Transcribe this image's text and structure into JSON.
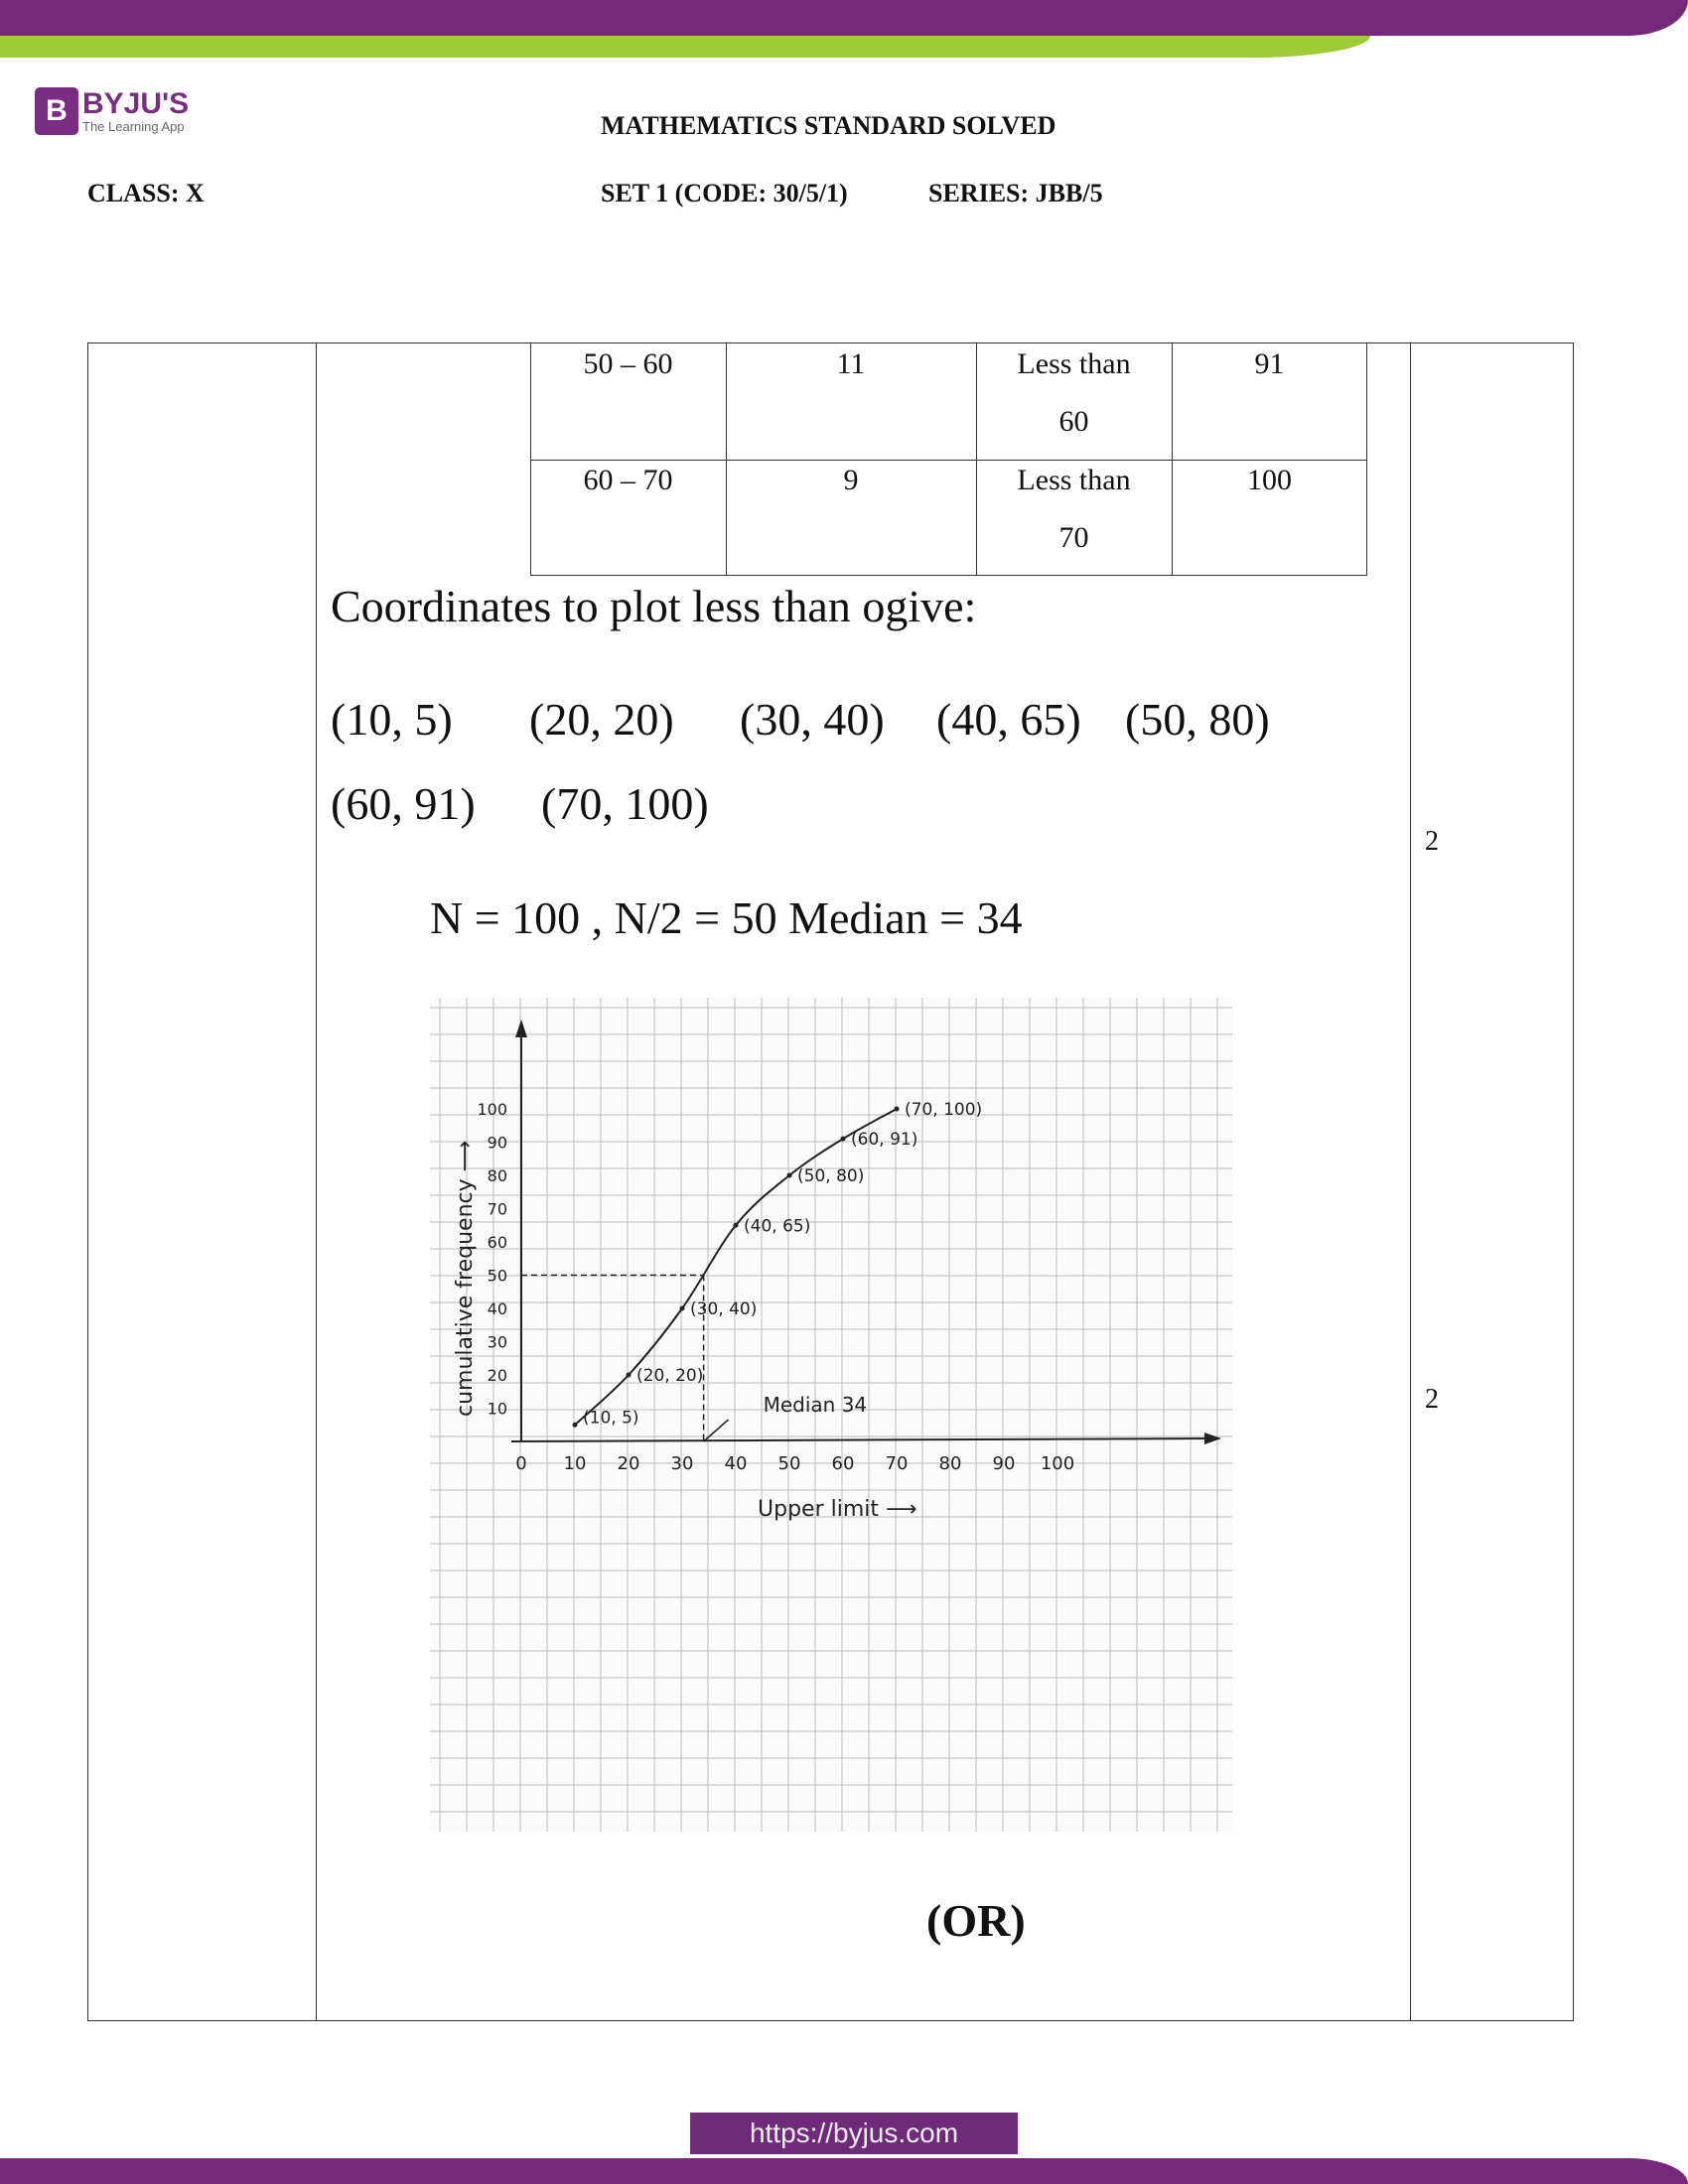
{
  "header": {
    "logo_brand": "BYJU'S",
    "logo_tagline": "The Learning App",
    "logo_letter": "B",
    "title": "MATHEMATICS STANDARD SOLVED",
    "class_label": "CLASS: X",
    "set_label": "SET 1 (CODE: 30/5/1)",
    "series_label": "SERIES: JBB/5"
  },
  "table": {
    "rows": [
      {
        "class_interval": "50 – 60",
        "frequency": "11",
        "less_than_1": "Less than",
        "less_than_2": "60",
        "cf": "91"
      },
      {
        "class_interval": "60 – 70",
        "frequency": "9",
        "less_than_1": "Less than",
        "less_than_2": "70",
        "cf": "100"
      }
    ]
  },
  "content": {
    "coords_heading": "Coordinates  to plot less than ogive:",
    "coords_row1": [
      "(10, 5)",
      "(20, 20)",
      "(30, 40)",
      "(40, 65)",
      "(50, 80)"
    ],
    "coords_row2": [
      "(60, 91)",
      "(70, 100)"
    ],
    "median_line": "N = 100 , N/2 = 50  Median = 34",
    "marks": [
      "2",
      "2"
    ],
    "or_label": "(OR)"
  },
  "chart_data": {
    "type": "line",
    "title": "",
    "xlabel": "Upper limit",
    "ylabel": "cumulative frequency",
    "x_ticks": [
      "0",
      "10",
      "20",
      "30",
      "40",
      "50",
      "60",
      "70",
      "80",
      "90",
      "100"
    ],
    "y_ticks": [
      "10",
      "20",
      "30",
      "40",
      "50",
      "60",
      "70",
      "80",
      "90",
      "100"
    ],
    "xlim": [
      0,
      110
    ],
    "ylim": [
      0,
      110
    ],
    "grid": true,
    "points": [
      [
        10,
        5
      ],
      [
        20,
        20
      ],
      [
        30,
        40
      ],
      [
        40,
        65
      ],
      [
        50,
        80
      ],
      [
        60,
        91
      ],
      [
        70,
        100
      ]
    ],
    "point_labels": [
      "(10, 5)",
      "(20, 20)",
      "(30, 40)",
      "(40, 65)",
      "(50, 80)",
      "(60, 91)",
      "(70, 100)"
    ],
    "median_guide": {
      "y": 50,
      "x": 34
    },
    "annotation": "Median  34"
  },
  "footer": {
    "url": "https://byjus.com"
  },
  "colors": {
    "brand_purple": "#76297c",
    "brand_green": "#9ccb34"
  }
}
